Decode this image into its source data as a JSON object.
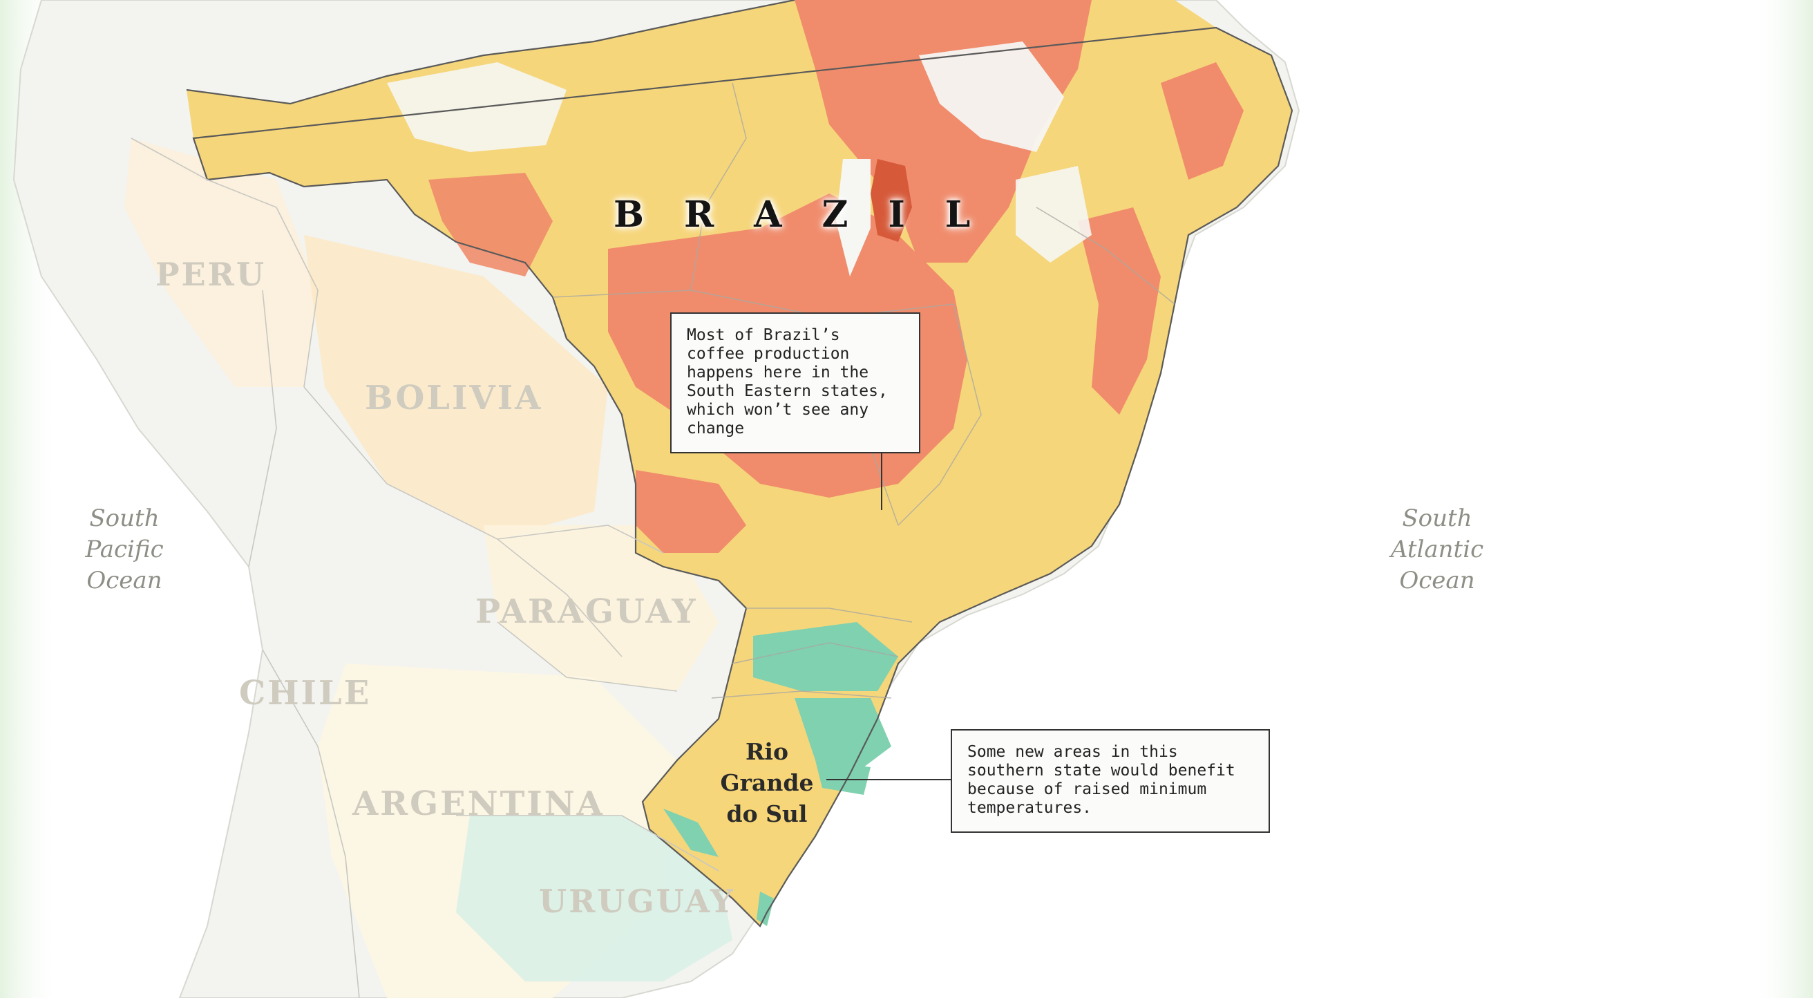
{
  "map": {
    "title": "BRAZIL",
    "countries": [
      {
        "id": "peru",
        "label": "PERU"
      },
      {
        "id": "bolivia",
        "label": "BOLIVIA"
      },
      {
        "id": "paraguay",
        "label": "PARAGUAY"
      },
      {
        "id": "chile",
        "label": "CHILE"
      },
      {
        "id": "argentina",
        "label": "ARGENTINA"
      },
      {
        "id": "uruguay",
        "label": "URUGUAY"
      }
    ],
    "oceans": [
      {
        "id": "pacific",
        "label": "South\nPacific\nOcean"
      },
      {
        "id": "atlantic",
        "label": "South\nAtlantic\nOcean"
      }
    ],
    "state_label": "Rio\nGrande\ndo Sul",
    "annotations": [
      {
        "id": "southeast",
        "text": "Most of Brazil’s coffee production happens here in the South Eastern states, which won’t see any change"
      },
      {
        "id": "south",
        "text": "Some new areas in this southern state would benefit because of raised minimum temperatures."
      }
    ],
    "colors": {
      "no_change": "#f6d67a",
      "loss": "#f08c6c",
      "severe_loss": "#d65a3a",
      "gain": "#7fd1b0",
      "neighbor_tint": "#fbe9c6",
      "border": "#555555",
      "background": "#ffffff"
    }
  }
}
